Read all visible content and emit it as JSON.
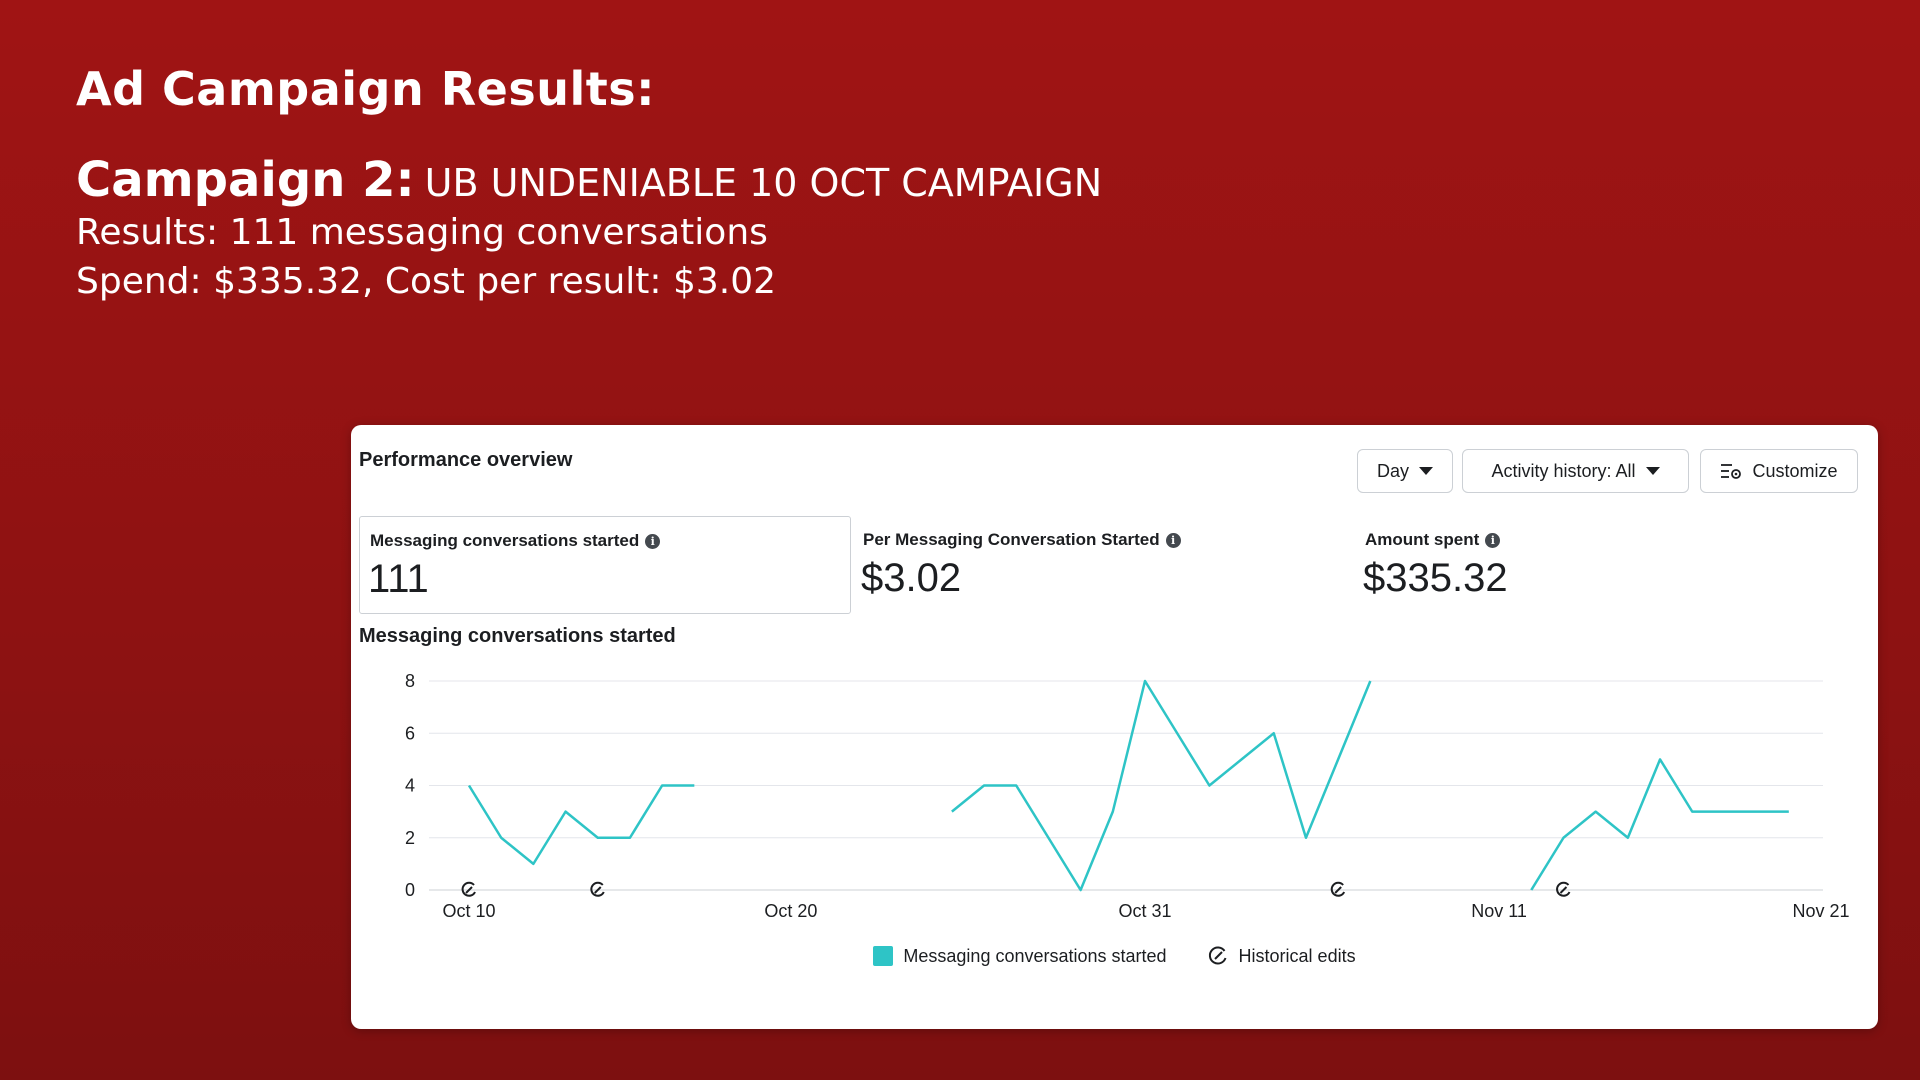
{
  "slide": {
    "title": "Ad Campaign Results:",
    "campaign_label": "Campaign 2:",
    "campaign_name": "UB UNDENIABLE 10 OCT CAMPAIGN",
    "results_line": "Results: 111 messaging conversations",
    "spend_line": "Spend: $335.32, Cost per result: $3.02"
  },
  "panel": {
    "title": "Performance overview",
    "controls": {
      "day_label": "Day",
      "activity_label": "Activity history: All",
      "customize_label": "Customize"
    },
    "metrics": [
      {
        "label": "Messaging conversations started",
        "value": "111"
      },
      {
        "label": "Per Messaging Conversation Started",
        "value": "$3.02"
      },
      {
        "label": "Amount spent",
        "value": "$335.32"
      }
    ],
    "chart_title": "Messaging conversations started",
    "legend": {
      "series_label": "Messaging conversations started",
      "edits_label": "Historical edits"
    }
  },
  "colors": {
    "series": "#2ec4c6",
    "grid": "#e4e6eb"
  },
  "chart_data": {
    "type": "line",
    "x_range_days": [
      0,
      42
    ],
    "x_ticks": [
      {
        "day": 0,
        "label": "Oct 10"
      },
      {
        "day": 10,
        "label": "Oct 20"
      },
      {
        "day": 21,
        "label": "Oct 31"
      },
      {
        "day": 32,
        "label": "Nov 11"
      },
      {
        "day": 42,
        "label": "Nov 21"
      }
    ],
    "ylim": [
      0,
      8
    ],
    "y_ticks": [
      0,
      2,
      4,
      6,
      8
    ],
    "grid": true,
    "legend_position": "bottom-center",
    "series": [
      {
        "name": "Messaging conversations started",
        "segments": [
          [
            [
              0,
              4
            ],
            [
              1,
              2
            ],
            [
              2,
              1
            ],
            [
              3,
              3
            ],
            [
              4,
              2
            ],
            [
              5,
              2
            ],
            [
              6,
              4
            ],
            [
              7,
              4
            ]
          ],
          [
            [
              15,
              3
            ],
            [
              16,
              4
            ],
            [
              17,
              4
            ],
            [
              18,
              2
            ],
            [
              19,
              0
            ],
            [
              20,
              3
            ],
            [
              21,
              8
            ],
            [
              22,
              6
            ],
            [
              23,
              4
            ],
            [
              24,
              5
            ],
            [
              25,
              6
            ],
            [
              26,
              2
            ],
            [
              27,
              5
            ],
            [
              28,
              8
            ]
          ],
          [
            [
              33,
              0
            ],
            [
              34,
              2
            ],
            [
              35,
              3
            ],
            [
              36,
              2
            ],
            [
              37,
              5
            ],
            [
              38,
              3
            ],
            [
              39,
              3
            ],
            [
              40,
              3
            ],
            [
              41,
              3
            ]
          ]
        ]
      }
    ],
    "historical_edit_days": [
      0,
      4,
      27,
      34
    ]
  }
}
